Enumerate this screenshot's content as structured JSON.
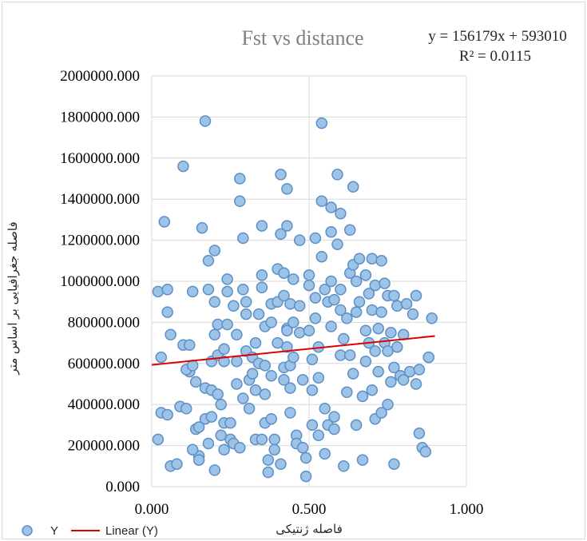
{
  "chart_data": {
    "type": "scatter",
    "title": "Fst vs distance",
    "xlabel": "فاصله ژنتیکی",
    "ylabel": "فاصله جغرافیایی بر اساس متر",
    "xlim": [
      0,
      1
    ],
    "ylim": [
      0,
      2000000
    ],
    "x_ticks": [
      "0.000",
      "0.500",
      "1.000"
    ],
    "y_ticks": [
      "0.000",
      "200000.000",
      "400000.000",
      "600000.000",
      "800000.000",
      "1000000.000",
      "1200000.000",
      "1400000.000",
      "1600000.000",
      "1800000.000",
      "2000000.000"
    ],
    "grid": true,
    "legend_position": "bottom",
    "legend": [
      "Y",
      "Linear (Y)"
    ],
    "trendline": {
      "equation": "y = 156179x + 593010",
      "r2": "R² = 0.0115",
      "slope": 156179,
      "intercept": 593010,
      "x_range": [
        0,
        0.9
      ],
      "color": "#e00000"
    },
    "marker_fill": "#9dc3e6",
    "marker_stroke": "#5b8fc8",
    "series": [
      {
        "name": "Y",
        "points": [
          [
            0.02,
            950000
          ],
          [
            0.05,
            960000
          ],
          [
            0.05,
            850000
          ],
          [
            0.06,
            740000
          ],
          [
            0.04,
            1290000
          ],
          [
            0.03,
            630000
          ],
          [
            0.02,
            230000
          ],
          [
            0.03,
            360000
          ],
          [
            0.06,
            100000
          ],
          [
            0.05,
            350000
          ],
          [
            0.08,
            110000
          ],
          [
            0.09,
            390000
          ],
          [
            0.11,
            380000
          ],
          [
            0.1,
            690000
          ],
          [
            0.12,
            690000
          ],
          [
            0.12,
            560000
          ],
          [
            0.11,
            570000
          ],
          [
            0.13,
            590000
          ],
          [
            0.13,
            950000
          ],
          [
            0.14,
            510000
          ],
          [
            0.15,
            150000
          ],
          [
            0.13,
            180000
          ],
          [
            0.14,
            280000
          ],
          [
            0.15,
            290000
          ],
          [
            0.15,
            130000
          ],
          [
            0.16,
            1260000
          ],
          [
            0.1,
            1560000
          ],
          [
            0.17,
            1780000
          ],
          [
            0.18,
            1100000
          ],
          [
            0.18,
            960000
          ],
          [
            0.17,
            480000
          ],
          [
            0.18,
            210000
          ],
          [
            0.17,
            330000
          ],
          [
            0.19,
            340000
          ],
          [
            0.19,
            470000
          ],
          [
            0.19,
            610000
          ],
          [
            0.2,
            740000
          ],
          [
            0.2,
            900000
          ],
          [
            0.2,
            1150000
          ],
          [
            0.21,
            790000
          ],
          [
            0.21,
            640000
          ],
          [
            0.21,
            450000
          ],
          [
            0.2,
            80000
          ],
          [
            0.22,
            250000
          ],
          [
            0.22,
            400000
          ],
          [
            0.23,
            180000
          ],
          [
            0.23,
            310000
          ],
          [
            0.23,
            670000
          ],
          [
            0.23,
            610000
          ],
          [
            0.24,
            950000
          ],
          [
            0.24,
            1010000
          ],
          [
            0.24,
            790000
          ],
          [
            0.25,
            310000
          ],
          [
            0.25,
            230000
          ],
          [
            0.26,
            210000
          ],
          [
            0.26,
            880000
          ],
          [
            0.27,
            740000
          ],
          [
            0.27,
            610000
          ],
          [
            0.27,
            500000
          ],
          [
            0.28,
            1390000
          ],
          [
            0.28,
            1500000
          ],
          [
            0.29,
            960000
          ],
          [
            0.29,
            1210000
          ],
          [
            0.29,
            430000
          ],
          [
            0.28,
            190000
          ],
          [
            0.3,
            900000
          ],
          [
            0.3,
            840000
          ],
          [
            0.3,
            660000
          ],
          [
            0.31,
            520000
          ],
          [
            0.31,
            380000
          ],
          [
            0.32,
            630000
          ],
          [
            0.32,
            550000
          ],
          [
            0.33,
            470000
          ],
          [
            0.33,
            700000
          ],
          [
            0.33,
            230000
          ],
          [
            0.34,
            840000
          ],
          [
            0.34,
            600000
          ],
          [
            0.35,
            1270000
          ],
          [
            0.35,
            1030000
          ],
          [
            0.35,
            970000
          ],
          [
            0.35,
            230000
          ],
          [
            0.36,
            780000
          ],
          [
            0.36,
            590000
          ],
          [
            0.36,
            450000
          ],
          [
            0.36,
            310000
          ],
          [
            0.37,
            130000
          ],
          [
            0.37,
            70000
          ],
          [
            0.38,
            890000
          ],
          [
            0.38,
            800000
          ],
          [
            0.38,
            540000
          ],
          [
            0.38,
            330000
          ],
          [
            0.39,
            180000
          ],
          [
            0.39,
            230000
          ],
          [
            0.4,
            1060000
          ],
          [
            0.4,
            900000
          ],
          [
            0.4,
            700000
          ],
          [
            0.41,
            1520000
          ],
          [
            0.41,
            1230000
          ],
          [
            0.41,
            110000
          ],
          [
            0.42,
            1040000
          ],
          [
            0.42,
            930000
          ],
          [
            0.42,
            580000
          ],
          [
            0.42,
            520000
          ],
          [
            0.43,
            1450000
          ],
          [
            0.43,
            1270000
          ],
          [
            0.43,
            770000
          ],
          [
            0.43,
            760000
          ],
          [
            0.43,
            680000
          ],
          [
            0.44,
            890000
          ],
          [
            0.44,
            590000
          ],
          [
            0.44,
            480000
          ],
          [
            0.44,
            360000
          ],
          [
            0.45,
            1010000
          ],
          [
            0.45,
            800000
          ],
          [
            0.45,
            630000
          ],
          [
            0.46,
            250000
          ],
          [
            0.46,
            210000
          ],
          [
            0.47,
            1200000
          ],
          [
            0.47,
            880000
          ],
          [
            0.47,
            750000
          ],
          [
            0.48,
            520000
          ],
          [
            0.48,
            190000
          ],
          [
            0.49,
            140000
          ],
          [
            0.49,
            50000
          ],
          [
            0.5,
            1030000
          ],
          [
            0.5,
            980000
          ],
          [
            0.5,
            760000
          ],
          [
            0.51,
            620000
          ],
          [
            0.51,
            470000
          ],
          [
            0.51,
            300000
          ],
          [
            0.52,
            1210000
          ],
          [
            0.52,
            920000
          ],
          [
            0.52,
            820000
          ],
          [
            0.53,
            680000
          ],
          [
            0.53,
            530000
          ],
          [
            0.53,
            250000
          ],
          [
            0.54,
            1770000
          ],
          [
            0.54,
            1390000
          ],
          [
            0.54,
            1120000
          ],
          [
            0.55,
            960000
          ],
          [
            0.55,
            380000
          ],
          [
            0.55,
            160000
          ],
          [
            0.56,
            900000
          ],
          [
            0.56,
            300000
          ],
          [
            0.57,
            1360000
          ],
          [
            0.57,
            1240000
          ],
          [
            0.57,
            1000000
          ],
          [
            0.57,
            780000
          ],
          [
            0.58,
            910000
          ],
          [
            0.58,
            340000
          ],
          [
            0.58,
            280000
          ],
          [
            0.59,
            1520000
          ],
          [
            0.59,
            1180000
          ],
          [
            0.6,
            1330000
          ],
          [
            0.6,
            960000
          ],
          [
            0.6,
            860000
          ],
          [
            0.6,
            640000
          ],
          [
            0.61,
            100000
          ],
          [
            0.61,
            720000
          ],
          [
            0.62,
            820000
          ],
          [
            0.62,
            460000
          ],
          [
            0.63,
            1250000
          ],
          [
            0.63,
            1040000
          ],
          [
            0.63,
            640000
          ],
          [
            0.64,
            1460000
          ],
          [
            0.64,
            1080000
          ],
          [
            0.64,
            550000
          ],
          [
            0.65,
            1000000
          ],
          [
            0.65,
            850000
          ],
          [
            0.65,
            300000
          ],
          [
            0.66,
            1110000
          ],
          [
            0.66,
            900000
          ],
          [
            0.67,
            440000
          ],
          [
            0.67,
            130000
          ],
          [
            0.68,
            1030000
          ],
          [
            0.68,
            760000
          ],
          [
            0.68,
            610000
          ],
          [
            0.69,
            940000
          ],
          [
            0.69,
            700000
          ],
          [
            0.7,
            1110000
          ],
          [
            0.7,
            860000
          ],
          [
            0.7,
            470000
          ],
          [
            0.71,
            980000
          ],
          [
            0.71,
            660000
          ],
          [
            0.71,
            330000
          ],
          [
            0.72,
            770000
          ],
          [
            0.72,
            560000
          ],
          [
            0.73,
            1100000
          ],
          [
            0.73,
            850000
          ],
          [
            0.73,
            360000
          ],
          [
            0.74,
            990000
          ],
          [
            0.74,
            700000
          ],
          [
            0.75,
            930000
          ],
          [
            0.75,
            660000
          ],
          [
            0.75,
            400000
          ],
          [
            0.76,
            750000
          ],
          [
            0.76,
            510000
          ],
          [
            0.77,
            930000
          ],
          [
            0.77,
            580000
          ],
          [
            0.77,
            110000
          ],
          [
            0.78,
            880000
          ],
          [
            0.78,
            680000
          ],
          [
            0.79,
            540000
          ],
          [
            0.8,
            740000
          ],
          [
            0.8,
            520000
          ],
          [
            0.81,
            890000
          ],
          [
            0.82,
            560000
          ],
          [
            0.83,
            840000
          ],
          [
            0.84,
            930000
          ],
          [
            0.84,
            500000
          ],
          [
            0.85,
            570000
          ],
          [
            0.85,
            260000
          ],
          [
            0.86,
            190000
          ],
          [
            0.87,
            170000
          ],
          [
            0.88,
            630000
          ],
          [
            0.88,
            630000
          ],
          [
            0.89,
            820000
          ]
        ]
      }
    ]
  }
}
